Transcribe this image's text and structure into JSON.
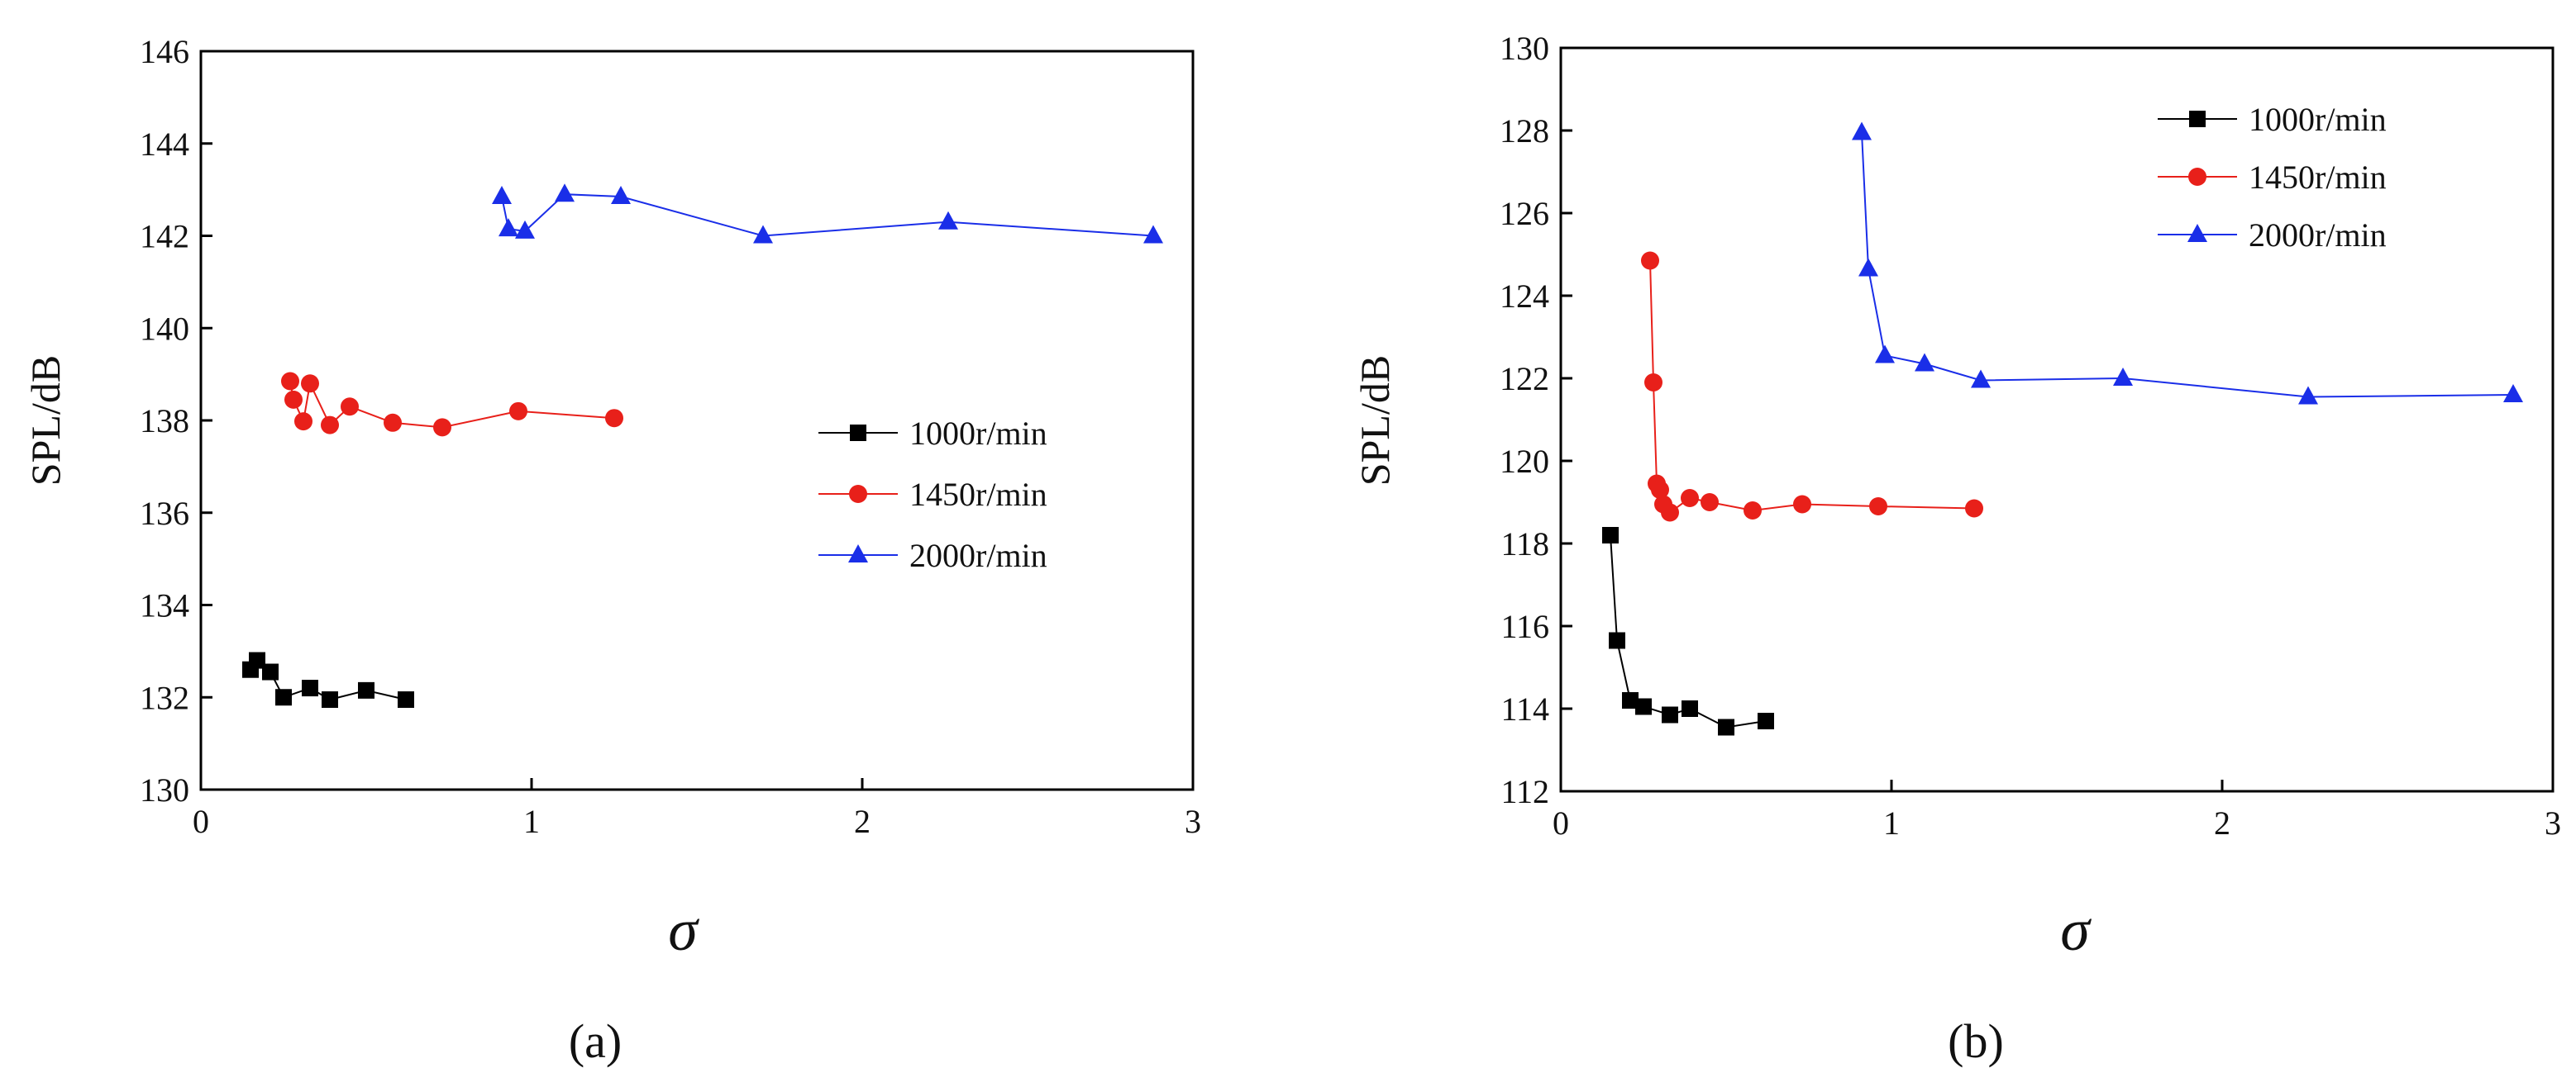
{
  "figure": {
    "background": "#ffffff"
  },
  "chart_data": [
    {
      "type": "line",
      "panel_label": "(a)",
      "xlabel": "σ",
      "ylabel": "SPL/dB",
      "xlim": [
        0,
        3
      ],
      "ylim": [
        130,
        146
      ],
      "xticks": [
        0,
        1,
        2,
        3
      ],
      "yticks": [
        130,
        132,
        134,
        136,
        138,
        140,
        142,
        144,
        146
      ],
      "grid": false,
      "legend_position": "center-right",
      "series": [
        {
          "name": "1000r/min",
          "color": "#000000",
          "marker": "square",
          "x": [
            0.15,
            0.17,
            0.21,
            0.25,
            0.33,
            0.39,
            0.5,
            0.62
          ],
          "y": [
            132.6,
            132.8,
            132.55,
            132.0,
            132.2,
            131.95,
            132.15,
            131.95
          ]
        },
        {
          "name": "1450r/min",
          "color": "#e8201a",
          "marker": "circle",
          "x": [
            0.27,
            0.28,
            0.31,
            0.33,
            0.39,
            0.45,
            0.58,
            0.73,
            0.96,
            1.25
          ],
          "y": [
            138.85,
            138.45,
            137.98,
            138.8,
            137.9,
            138.3,
            137.95,
            137.85,
            138.2,
            138.05
          ]
        },
        {
          "name": "2000r/min",
          "color": "#1a2ee8",
          "marker": "triangle",
          "x": [
            0.91,
            0.93,
            0.98,
            1.1,
            1.27,
            1.7,
            2.26,
            2.88
          ],
          "y": [
            142.85,
            142.15,
            142.1,
            142.9,
            142.85,
            142.0,
            142.3,
            142.0
          ]
        }
      ]
    },
    {
      "type": "line",
      "panel_label": "(b)",
      "xlabel": "σ",
      "ylabel": "SPL/dB",
      "xlim": [
        0,
        3
      ],
      "ylim": [
        112,
        130
      ],
      "xticks": [
        0,
        1,
        2,
        3
      ],
      "yticks": [
        112,
        114,
        116,
        118,
        120,
        122,
        124,
        126,
        128,
        130
      ],
      "grid": false,
      "legend_position": "top-right",
      "series": [
        {
          "name": "1000r/min",
          "color": "#000000",
          "marker": "square",
          "x": [
            0.15,
            0.17,
            0.21,
            0.25,
            0.33,
            0.39,
            0.5,
            0.62
          ],
          "y": [
            118.2,
            115.65,
            114.2,
            114.05,
            113.85,
            114.0,
            113.55,
            113.7
          ]
        },
        {
          "name": "1450r/min",
          "color": "#e8201a",
          "marker": "circle",
          "x": [
            0.27,
            0.28,
            0.29,
            0.3,
            0.31,
            0.33,
            0.39,
            0.45,
            0.58,
            0.73,
            0.96,
            1.25
          ],
          "y": [
            124.85,
            121.9,
            119.45,
            119.3,
            118.95,
            118.75,
            119.1,
            119.0,
            118.8,
            118.95,
            118.9,
            118.85
          ]
        },
        {
          "name": "2000r/min",
          "color": "#1a2ee8",
          "marker": "triangle",
          "x": [
            0.91,
            0.93,
            0.98,
            1.1,
            1.27,
            1.7,
            2.26,
            2.88
          ],
          "y": [
            127.95,
            124.65,
            122.55,
            122.35,
            121.95,
            122.0,
            121.55,
            121.6
          ]
        }
      ]
    }
  ]
}
